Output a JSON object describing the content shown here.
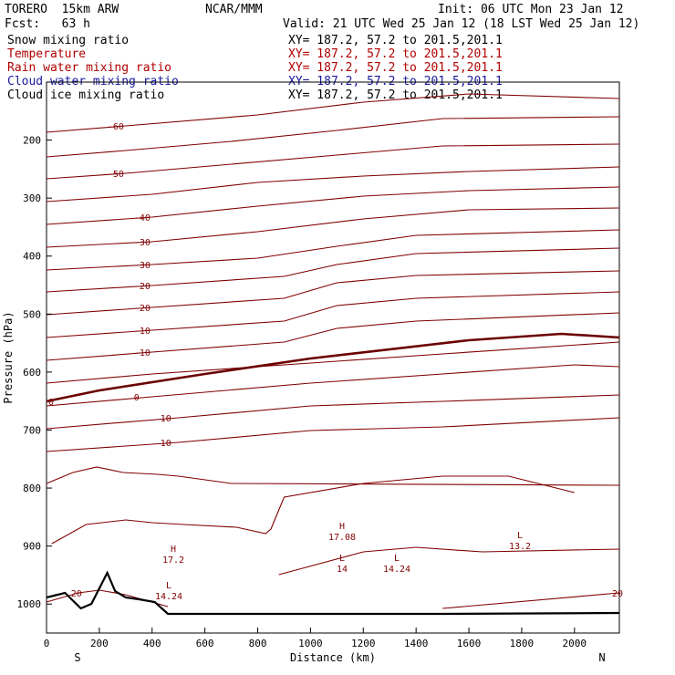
{
  "header": {
    "model": "TORERO  15km ARW",
    "center": "NCAR/MMM",
    "init": "Init: 06 UTC Mon 23 Jan 12",
    "fcst": "Fcst:   63 h",
    "valid": "Valid: 21 UTC Wed 25 Jan 12 (18 LST Wed 25 Jan 12)"
  },
  "legend": [
    {
      "label": "Snow mixing ratio",
      "xy": "XY= 187.2, 57.2 to 201.5,201.1",
      "color": "#000000"
    },
    {
      "label": "Temperature",
      "xy": "XY= 187.2, 57.2 to 201.5,201.1",
      "color": "#b00000"
    },
    {
      "label": "Rain water mixing ratio",
      "xy": "XY= 187.2, 57.2 to 201.5,201.1",
      "color": "#b00000"
    },
    {
      "label": "Cloud water mixing ratio",
      "xy": "XY= 187.2, 57.2 to 201.5,201.1",
      "color": "#1a1aa0"
    },
    {
      "label": "Cloud ice mixing ratio",
      "xy": "XY= 187.2, 57.2 to 201.5,201.1",
      "color": "#000000"
    }
  ],
  "chart_data": {
    "type": "contour",
    "xlabel": "Distance (km)",
    "ylabel": "Pressure (hPa)",
    "xlim": [
      0,
      2170
    ],
    "ylim": [
      1050,
      100
    ],
    "x_ticks": [
      "0",
      "200",
      "400",
      "600",
      "800",
      "1000",
      "1200",
      "1400",
      "1600",
      "1800",
      "2000"
    ],
    "y_ticks": [
      "200",
      "300",
      "400",
      "500",
      "600",
      "700",
      "800",
      "900",
      "1000"
    ],
    "x_endpoints": {
      "left": "S",
      "right": "N"
    },
    "contour_color": "#800000",
    "freezing_level_color": "#6b0000",
    "terrain_color": "#000000",
    "temperature_contours": [
      {
        "label": "-60",
        "pts": [
          [
            0,
            145
          ],
          [
            300,
            138
          ],
          [
            800,
            126
          ],
          [
            1200,
            112
          ],
          [
            1600,
            103
          ],
          [
            2170,
            108
          ]
        ]
      },
      {
        "label": "",
        "pts": [
          [
            0,
            172
          ],
          [
            300,
            165
          ],
          [
            700,
            155
          ],
          [
            1100,
            143
          ],
          [
            1500,
            130
          ],
          [
            2170,
            128
          ]
        ]
      },
      {
        "label": "-50",
        "pts": [
          [
            0,
            196
          ],
          [
            300,
            190
          ],
          [
            700,
            180
          ],
          [
            1100,
            170
          ],
          [
            1500,
            160
          ],
          [
            2170,
            158
          ]
        ]
      },
      {
        "label": "",
        "pts": [
          [
            0,
            221
          ],
          [
            400,
            213
          ],
          [
            800,
            200
          ],
          [
            1200,
            193
          ],
          [
            1600,
            188
          ],
          [
            2170,
            183
          ]
        ]
      },
      {
        "label": "-40",
        "pts": [
          [
            0,
            246
          ],
          [
            400,
            238
          ],
          [
            800,
            226
          ],
          [
            1200,
            215
          ],
          [
            1600,
            209
          ],
          [
            2170,
            205
          ]
        ]
      },
      {
        "label": "-30",
        "pts": [
          [
            0,
            271
          ],
          [
            400,
            265
          ],
          [
            800,
            254
          ],
          [
            1200,
            240
          ],
          [
            1600,
            230
          ],
          [
            2170,
            228
          ]
        ]
      },
      {
        "label": "-30",
        "pts": [
          [
            0,
            296
          ],
          [
            400,
            290
          ],
          [
            800,
            283
          ],
          [
            1100,
            270
          ],
          [
            1400,
            258
          ],
          [
            2170,
            252
          ]
        ]
      },
      {
        "label": "-20",
        "pts": [
          [
            0,
            320
          ],
          [
            400,
            313
          ],
          [
            900,
            303
          ],
          [
            1100,
            290
          ],
          [
            1400,
            278
          ],
          [
            2170,
            272
          ]
        ]
      },
      {
        "label": "-20",
        "pts": [
          [
            0,
            345
          ],
          [
            400,
            337
          ],
          [
            900,
            327
          ],
          [
            1100,
            310
          ],
          [
            1400,
            302
          ],
          [
            2170,
            297
          ]
        ]
      },
      {
        "label": "-10",
        "pts": [
          [
            0,
            370
          ],
          [
            400,
            362
          ],
          [
            900,
            352
          ],
          [
            1100,
            335
          ],
          [
            1400,
            327
          ],
          [
            2170,
            320
          ]
        ]
      },
      {
        "label": "-10",
        "pts": [
          [
            0,
            395
          ],
          [
            400,
            386
          ],
          [
            900,
            375
          ],
          [
            1100,
            360
          ],
          [
            1400,
            352
          ],
          [
            2170,
            343
          ]
        ]
      },
      {
        "label": "",
        "pts": [
          [
            0,
            420
          ],
          [
            400,
            410
          ],
          [
            1000,
            398
          ],
          [
            1500,
            388
          ],
          [
            2170,
            375
          ]
        ]
      },
      {
        "label": "0",
        "pts": [
          [
            0,
            445
          ],
          [
            400,
            435
          ],
          [
            1000,
            420
          ],
          [
            1500,
            410
          ],
          [
            2000,
            400
          ],
          [
            2170,
            402
          ]
        ]
      },
      {
        "label": "10",
        "pts": [
          [
            0,
            470
          ],
          [
            500,
            458
          ],
          [
            1000,
            445
          ],
          [
            1500,
            440
          ],
          [
            2170,
            433
          ]
        ]
      },
      {
        "label": "10",
        "pts": [
          [
            0,
            495
          ],
          [
            500,
            485
          ],
          [
            1000,
            472
          ],
          [
            1500,
            468
          ],
          [
            2170,
            458
          ]
        ]
      }
    ],
    "freezing_level": {
      "label": "0",
      "pts": [
        [
          0,
          440
        ],
        [
          200,
          428
        ],
        [
          600,
          410
        ],
        [
          1000,
          393
        ],
        [
          1600,
          373
        ],
        [
          1950,
          366
        ],
        [
          2170,
          370
        ]
      ]
    },
    "terrain": {
      "pts": [
        [
          0,
          655
        ],
        [
          70,
          650
        ],
        [
          130,
          667
        ],
        [
          170,
          662
        ],
        [
          230,
          628
        ],
        [
          260,
          648
        ],
        [
          300,
          655
        ],
        [
          350,
          657
        ],
        [
          410,
          660
        ],
        [
          460,
          673
        ],
        [
          800,
          673
        ],
        [
          1500,
          673
        ],
        [
          2170,
          672
        ]
      ]
    },
    "low_level_contours": [
      {
        "label": "",
        "pts": [
          [
            0,
            530
          ],
          [
            100,
            518
          ],
          [
            190,
            512
          ],
          [
            290,
            518
          ],
          [
            420,
            520
          ],
          [
            500,
            522
          ],
          [
            700,
            530
          ],
          [
            2170,
            532
          ]
        ]
      },
      {
        "label": "",
        "pts": [
          [
            20,
            596
          ],
          [
            150,
            575
          ],
          [
            300,
            570
          ],
          [
            400,
            573
          ],
          [
            520,
            575
          ],
          [
            720,
            578
          ],
          [
            830,
            585
          ],
          [
            850,
            580
          ],
          [
            900,
            545
          ],
          [
            1200,
            530
          ],
          [
            1500,
            522
          ],
          [
            1750,
            522
          ],
          [
            2000,
            540
          ]
        ]
      },
      {
        "label": "",
        "pts": [
          [
            880,
            630
          ],
          [
            1200,
            605
          ],
          [
            1400,
            600
          ],
          [
            1650,
            605
          ],
          [
            2170,
            602
          ]
        ]
      },
      {
        "label": "20",
        "pts": [
          [
            0,
            660
          ],
          [
            120,
            650
          ],
          [
            200,
            647
          ],
          [
            300,
            652
          ],
          [
            460,
            665
          ]
        ]
      },
      {
        "label": "20",
        "pts": [
          [
            1500,
            667
          ],
          [
            2170,
            650
          ]
        ]
      }
    ],
    "annotations": [
      {
        "text": "H",
        "value": "17.2"
      },
      {
        "text": "L",
        "value": "14.24"
      },
      {
        "text": "H",
        "value": "17.08"
      },
      {
        "text": "L",
        "value": "14"
      },
      {
        "text": "L",
        "value": "14.24"
      },
      {
        "text": "L",
        "value": "13.2"
      }
    ]
  }
}
